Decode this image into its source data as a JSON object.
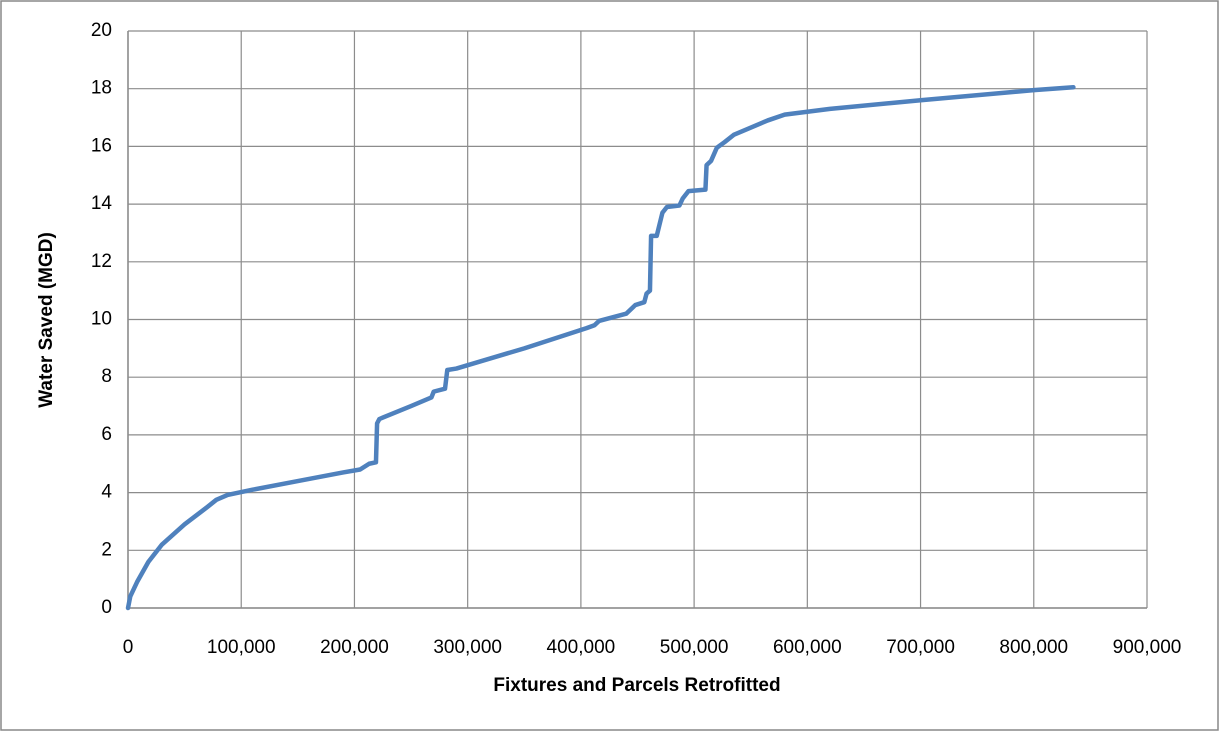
{
  "chart_data": {
    "type": "line",
    "x_label": "Fixtures and Parcels Retrofitted",
    "y_label": "Water Saved (MGD)",
    "color": "#4f81bd",
    "x": [
      0,
      2000,
      8000,
      18000,
      30000,
      50000,
      70000,
      78000,
      88000,
      110000,
      150000,
      190000,
      205000,
      213000,
      219000,
      220000,
      222000,
      250000,
      268000,
      270000,
      280000,
      282000,
      290000,
      350000,
      405000,
      412000,
      416000,
      440000,
      448000,
      456000,
      458000,
      461000,
      462000,
      467000,
      472000,
      476000,
      487000,
      490000,
      495000,
      510000,
      511000,
      515000,
      520000,
      527000,
      535000,
      565000,
      580000,
      620000,
      700000,
      800000,
      835000
    ],
    "values": [
      0,
      0.4,
      0.9,
      1.6,
      2.2,
      2.9,
      3.5,
      3.75,
      3.92,
      4.1,
      4.4,
      4.7,
      4.8,
      5.0,
      5.05,
      6.4,
      6.55,
      7.0,
      7.3,
      7.5,
      7.6,
      8.25,
      8.3,
      9.0,
      9.7,
      9.8,
      9.95,
      10.2,
      10.5,
      10.6,
      10.9,
      11.0,
      12.9,
      12.9,
      13.7,
      13.9,
      13.95,
      14.2,
      14.45,
      14.5,
      15.35,
      15.5,
      15.95,
      16.15,
      16.4,
      16.9,
      17.1,
      17.3,
      17.6,
      17.95,
      18.05
    ],
    "xlim": [
      0,
      900000
    ],
    "xticks": [
      0,
      {
        "value": 100000,
        "label": "100,000"
      },
      {
        "value": 200000,
        "label": "200,000"
      },
      {
        "value": 300000,
        "label": "300,000"
      },
      {
        "value": 400000,
        "label": "400,000"
      },
      {
        "value": 500000,
        "label": "500,000"
      },
      {
        "value": 600000,
        "label": "600,000"
      },
      {
        "value": 700000,
        "label": "700,000"
      },
      {
        "value": 800000,
        "label": "800,000"
      },
      {
        "value": 900000,
        "label": "900,000"
      }
    ],
    "ylim": [
      0,
      20
    ],
    "yticks": [
      0,
      2,
      4,
      6,
      8,
      10,
      12,
      14,
      16,
      18,
      20
    ],
    "grid": true
  }
}
